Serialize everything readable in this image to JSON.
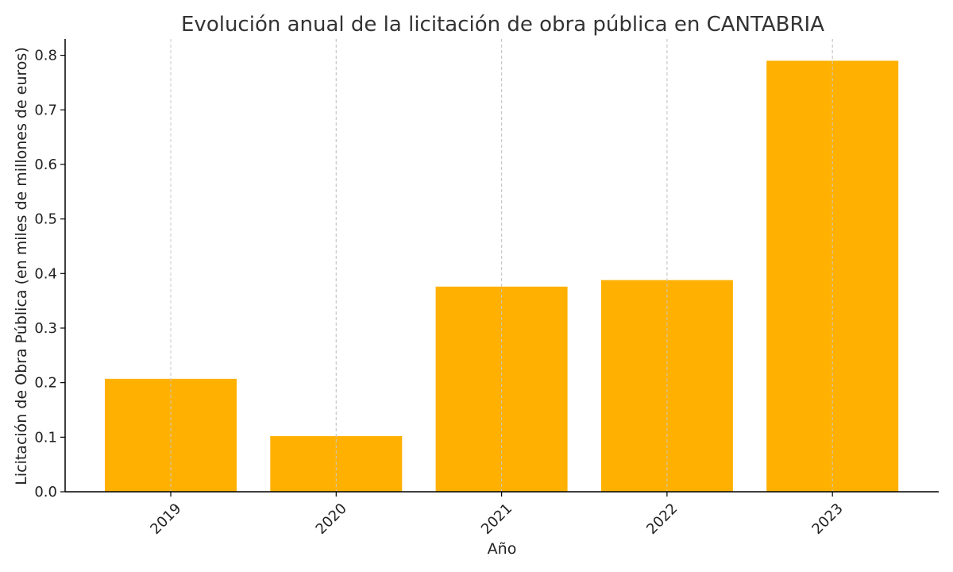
{
  "chart_data": {
    "type": "bar",
    "title": "Evolución anual de la licitación de obra pública en CANTABRIA",
    "xlabel": "Año",
    "ylabel": "Licitación de Obra Pública (en miles de millones de euros)",
    "categories": [
      "2019",
      "2020",
      "2021",
      "2022",
      "2023"
    ],
    "values": [
      0.207,
      0.102,
      0.376,
      0.388,
      0.79
    ],
    "ylim": [
      0,
      0.83
    ],
    "yticks": [
      0.0,
      0.1,
      0.2,
      0.3,
      0.4,
      0.5,
      0.6,
      0.7,
      0.8
    ],
    "ytick_labels": [
      "0.0",
      "0.1",
      "0.2",
      "0.3",
      "0.4",
      "0.5",
      "0.6",
      "0.7",
      "0.8"
    ],
    "grid": "vertical dashed at categories",
    "bar_color": "#FFB000",
    "legend": "none"
  }
}
